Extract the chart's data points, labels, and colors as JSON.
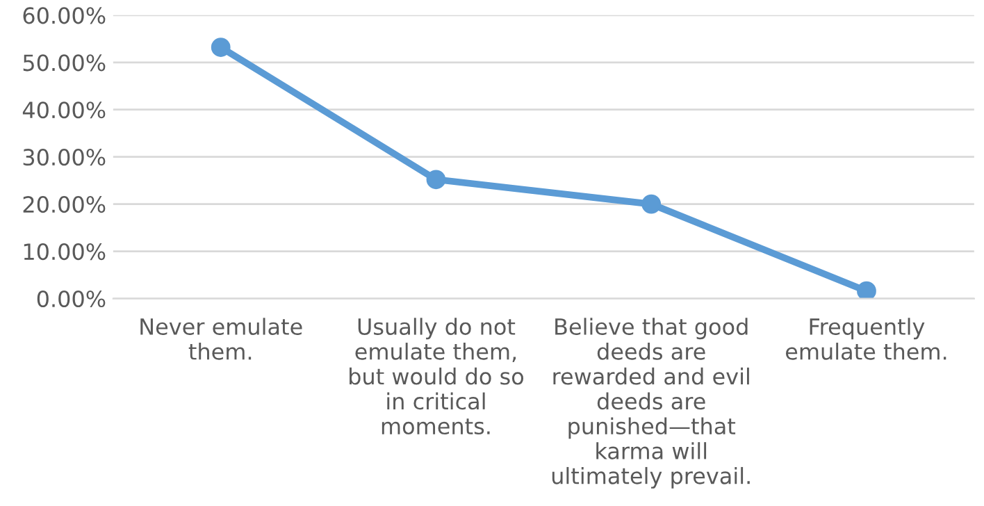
{
  "chart_data": {
    "type": "line",
    "categories": [
      "Never emulate them.",
      "Usually do not emulate them, but would do so in critical moments.",
      "Believe that good deeds are rewarded and evil deeds are punished—that karma will ultimately prevail.",
      "Frequently emulate them."
    ],
    "series": [
      {
        "color": "#5b9bd5",
        "values": [
          53.2,
          25.2,
          20.0,
          1.6
        ]
      }
    ],
    "ylim": [
      0,
      60
    ],
    "yticks": [
      {
        "value": 0,
        "label": "0.00%"
      },
      {
        "value": 10,
        "label": "10.00%"
      },
      {
        "value": 20,
        "label": "20.00%"
      },
      {
        "value": 30,
        "label": "30.00%"
      },
      {
        "value": 40,
        "label": "40.00%"
      },
      {
        "value": 50,
        "label": "50.00%"
      },
      {
        "value": 60,
        "label": "60.00%"
      }
    ],
    "grid": "y",
    "marker": "circle",
    "line_style": "solid",
    "legend": false
  }
}
